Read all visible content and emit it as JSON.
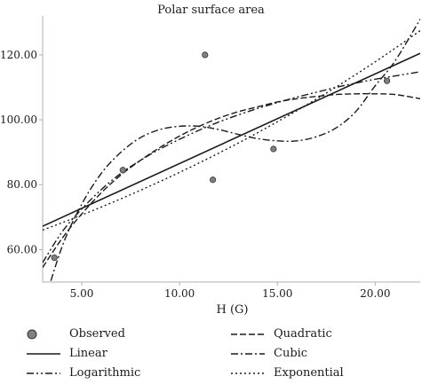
{
  "chart_data": {
    "type": "scatter",
    "title": "Polar surface area",
    "xlabel": "H (G)",
    "ylabel": "",
    "xlim": [
      3.0,
      22.3
    ],
    "ylim": [
      50,
      132
    ],
    "xticks": [
      5,
      10,
      15,
      20
    ],
    "xtick_labels": [
      "5.00",
      "10.00",
      "15.00",
      "20.00"
    ],
    "yticks": [
      60,
      80,
      100,
      120
    ],
    "ytick_labels": [
      "60.00",
      "80.00",
      "100.00",
      "120.00"
    ],
    "grid": false,
    "legend_position": "bottom",
    "observed": {
      "name": "Observed",
      "x": [
        3.6,
        7.1,
        11.3,
        11.7,
        14.8,
        20.6
      ],
      "y": [
        57.5,
        84.5,
        120.0,
        81.5,
        91.0,
        112.0
      ]
    },
    "fits": [
      {
        "name": "Linear",
        "style": "solid",
        "x": [
          3.0,
          22.3
        ],
        "y": [
          67.2,
          120.5
        ]
      },
      {
        "name": "Quadratic",
        "style": "dashed",
        "x": [
          3.0,
          4.0,
          5.0,
          6.0,
          7.0,
          8.0,
          9.0,
          10.0,
          11.0,
          12.0,
          13.0,
          14.0,
          15.0,
          16.0,
          17.0,
          18.0,
          19.0,
          20.0,
          21.0,
          22.3
        ],
        "y": [
          54.5,
          63.5,
          71.0,
          77.5,
          83.0,
          87.5,
          91.5,
          95.0,
          98.0,
          100.5,
          102.5,
          104.0,
          105.5,
          106.5,
          107.2,
          107.8,
          108.0,
          108.0,
          107.8,
          106.5
        ]
      },
      {
        "name": "Cubic",
        "style": "dashdot",
        "x": [
          3.0,
          4.0,
          5.0,
          6.0,
          7.0,
          8.0,
          9.0,
          10.0,
          11.0,
          12.0,
          13.0,
          14.0,
          15.0,
          16.0,
          17.0,
          18.0,
          19.0,
          20.0,
          21.0,
          22.3
        ],
        "y": [
          42.0,
          61.0,
          74.0,
          83.5,
          90.0,
          94.5,
          97.0,
          98.0,
          98.0,
          97.0,
          95.5,
          94.2,
          93.5,
          93.5,
          94.8,
          97.5,
          102.5,
          110.5,
          118.0,
          131.0
        ]
      },
      {
        "name": "Logarithmic",
        "style": "dashdotdot",
        "x": [
          3.0,
          4.0,
          5.0,
          6.0,
          7.0,
          8.0,
          9.0,
          10.0,
          11.0,
          12.0,
          13.0,
          14.0,
          15.0,
          16.0,
          17.0,
          18.0,
          19.0,
          20.0,
          21.0,
          22.3
        ],
        "y": [
          56.0,
          65.5,
          72.5,
          78.5,
          83.5,
          87.5,
          91.0,
          94.0,
          96.8,
          99.3,
          101.5,
          103.5,
          105.3,
          107.0,
          108.5,
          110.0,
          111.3,
          112.5,
          113.5,
          114.8
        ]
      },
      {
        "name": "Exponential",
        "style": "dotted",
        "x": [
          3.0,
          22.3
        ],
        "y": [
          66.0,
          127.5
        ],
        "growth": "exponential"
      }
    ],
    "legend": [
      {
        "name": "Observed",
        "symbol": "marker",
        "column": 0,
        "row": 0
      },
      {
        "name": "Linear",
        "symbol": "solid",
        "column": 0,
        "row": 1
      },
      {
        "name": "Logarithmic",
        "symbol": "dashdotdot",
        "column": 0,
        "row": 2
      },
      {
        "name": "Quadratic",
        "symbol": "dashed",
        "column": 1,
        "row": 0
      },
      {
        "name": "Cubic",
        "symbol": "dashdot",
        "column": 1,
        "row": 1
      },
      {
        "name": "Exponential",
        "symbol": "dotted",
        "column": 1,
        "row": 2
      }
    ],
    "colors": {
      "line": "#1a1a1a",
      "marker_fill": "#808080",
      "marker_edge": "#333333",
      "axis": "#b0b0b0"
    }
  }
}
